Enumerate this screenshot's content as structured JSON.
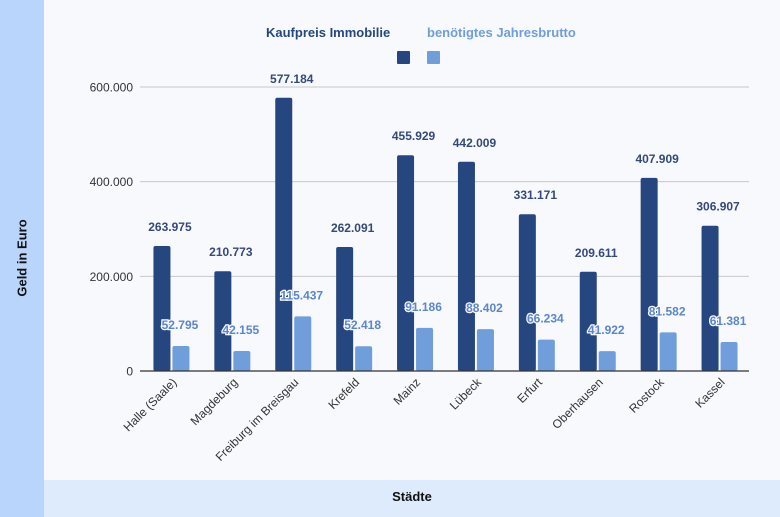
{
  "chart_data": {
    "type": "bar",
    "title": "",
    "xlabel": "Städte",
    "ylabel": "Geld in Euro",
    "ylim": [
      0,
      600000
    ],
    "yticks": [
      0,
      200000,
      400000,
      600000
    ],
    "ytick_labels": [
      "0",
      "200.000",
      "400.000",
      "600.000"
    ],
    "grid": true,
    "legend_position": "top",
    "categories": [
      "Halle (Saale)",
      "Magdeburg",
      "Freiburg im Breisgau",
      "Krefeld",
      "Mainz",
      "Lübeck",
      "Erfurt",
      "Oberhausen",
      "Rostock",
      "Kassel"
    ],
    "series": [
      {
        "name": "Kaufpreis Immobilie",
        "color": "#26467f",
        "values": [
          263975,
          210773,
          577184,
          262091,
          455929,
          442009,
          331171,
          209611,
          407909,
          306907
        ],
        "labels": [
          "263.975",
          "210.773",
          "577.184",
          "262.091",
          "455.929",
          "442.009",
          "331.171",
          "209.611",
          "407.909",
          "306.907"
        ]
      },
      {
        "name": "benötigtes Jahresbrutto",
        "color": "#6f9edb",
        "values": [
          52795,
          42155,
          115437,
          52418,
          91186,
          88402,
          66234,
          41922,
          81582,
          61381
        ],
        "labels": [
          "52.795",
          "42.155",
          "115.437",
          "52.418",
          "91.186",
          "88.402",
          "66.234",
          "41.922",
          "81.582",
          "61.381"
        ]
      }
    ]
  },
  "colors": {
    "ylabel_panel": "#b9d5fb",
    "xlabel_panel": "#deebfd",
    "background": "#f7f9fd"
  }
}
